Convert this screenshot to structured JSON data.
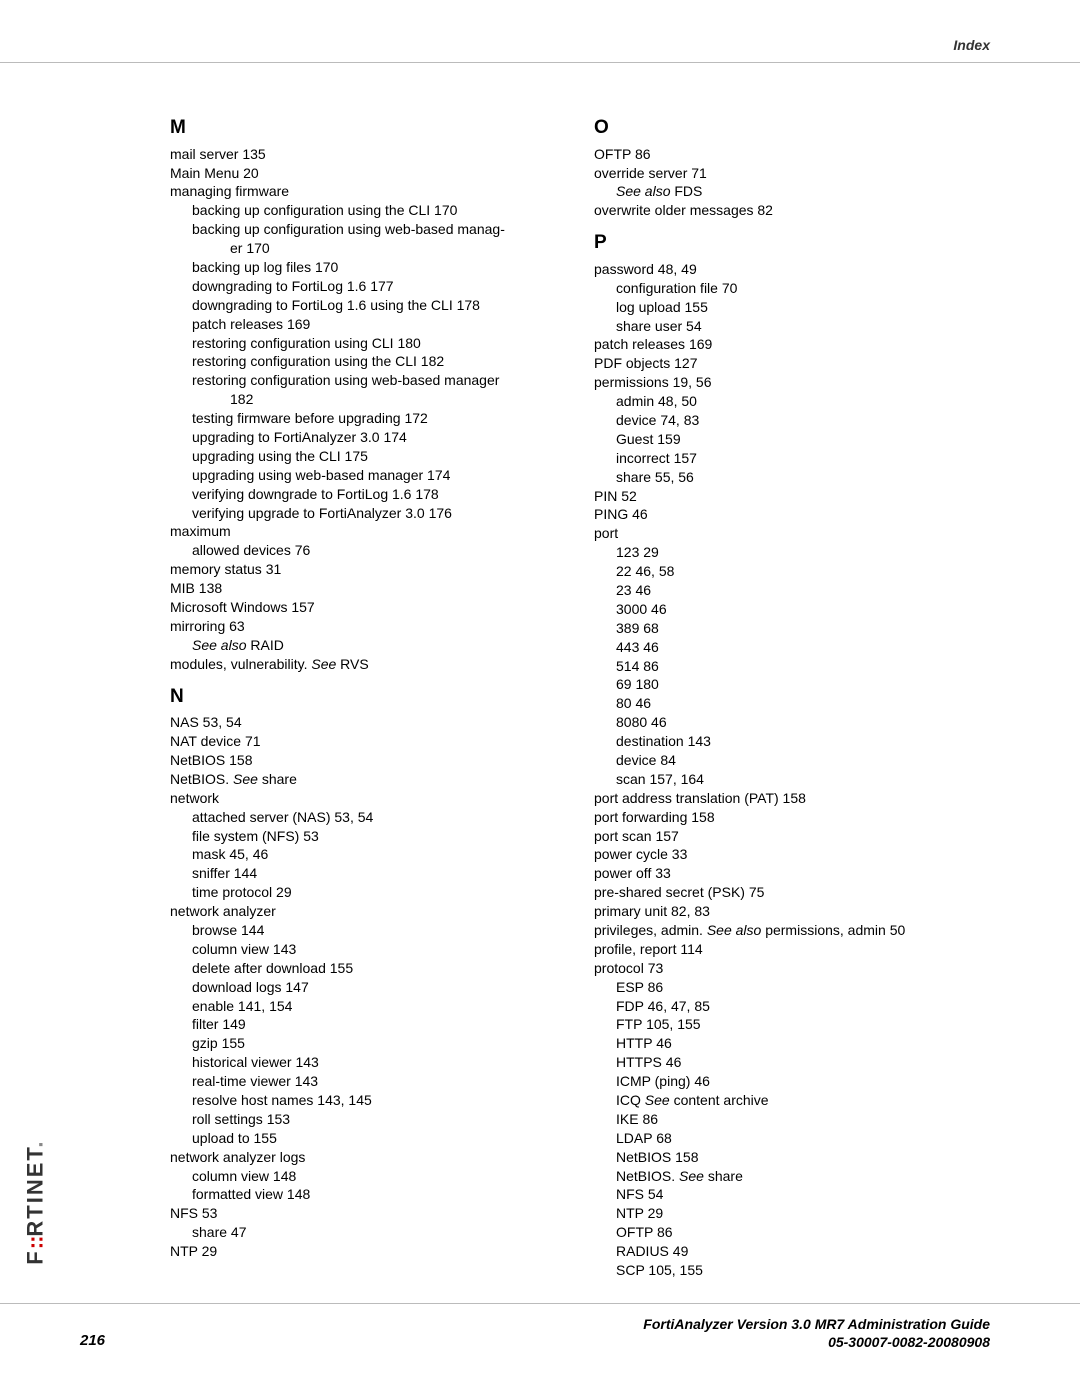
{
  "header": {
    "label": "Index"
  },
  "brand": "F   RTINET",
  "footer": {
    "page": "216",
    "title": "FortiAnalyzer Version 3.0 MR7 Administration Guide",
    "docnum": "05-30007-0082-20080908"
  },
  "left": {
    "M": {
      "letter": "M",
      "items": [
        {
          "t": "mail server 135"
        },
        {
          "t": "Main Menu 20"
        },
        {
          "t": "managing firmware"
        },
        {
          "t": "backing up configuration using the CLI 170",
          "lvl": 1
        },
        {
          "t": "backing up configuration using web-based manag-",
          "lvl": 1
        },
        {
          "t": "er 170",
          "lvl": 2
        },
        {
          "t": "backing up log files 170",
          "lvl": 1
        },
        {
          "t": "downgrading to FortiLog 1.6 177",
          "lvl": 1
        },
        {
          "t": "downgrading to FortiLog 1.6 using the CLI 178",
          "lvl": 1
        },
        {
          "t": "patch releases 169",
          "lvl": 1
        },
        {
          "t": "restoring configuration using CLI 180",
          "lvl": 1
        },
        {
          "t": "restoring configuration using the CLI 182",
          "lvl": 1
        },
        {
          "t": "restoring configuration using web-based manager",
          "lvl": 1
        },
        {
          "t": "182",
          "lvl": 2
        },
        {
          "t": "testing firmware before upgrading 172",
          "lvl": 1
        },
        {
          "t": "upgrading to FortiAnalyzer 3.0 174",
          "lvl": 1
        },
        {
          "t": "upgrading using the CLI 175",
          "lvl": 1
        },
        {
          "t": "upgrading using web-based manager 174",
          "lvl": 1
        },
        {
          "t": "verifying downgrade to FortiLog 1.6 178",
          "lvl": 1
        },
        {
          "t": "verifying upgrade to FortiAnalyzer 3.0 176",
          "lvl": 1
        },
        {
          "t": "maximum"
        },
        {
          "t": "allowed devices 76",
          "lvl": 1
        },
        {
          "t": "memory status 31"
        },
        {
          "t": "MIB 138"
        },
        {
          "t": "Microsoft Windows 157"
        },
        {
          "t": "mirroring 63"
        },
        {
          "html": "<span class='italic'>See also</span> RAID",
          "lvl": 1
        },
        {
          "html": "modules, vulnerability. <span class='italic'>See</span>  RVS"
        }
      ]
    },
    "N": {
      "letter": "N",
      "items": [
        {
          "t": "NAS 53, 54"
        },
        {
          "t": "NAT device 71"
        },
        {
          "t": "NetBIOS 158"
        },
        {
          "html": "NetBIOS. <span class='italic'>See</span>  share"
        },
        {
          "t": "network"
        },
        {
          "t": "attached server (NAS) 53, 54",
          "lvl": 1
        },
        {
          "t": "file system (NFS) 53",
          "lvl": 1
        },
        {
          "t": "mask 45, 46",
          "lvl": 1
        },
        {
          "t": "sniffer 144",
          "lvl": 1
        },
        {
          "t": "time protocol 29",
          "lvl": 1
        },
        {
          "t": "network analyzer"
        },
        {
          "t": "browse 144",
          "lvl": 1
        },
        {
          "t": "column view 143",
          "lvl": 1
        },
        {
          "t": "delete after download 155",
          "lvl": 1
        },
        {
          "t": "download logs 147",
          "lvl": 1
        },
        {
          "t": "enable 141, 154",
          "lvl": 1
        },
        {
          "t": "filter 149",
          "lvl": 1
        },
        {
          "t": "gzip 155",
          "lvl": 1
        },
        {
          "t": "historical viewer 143",
          "lvl": 1
        },
        {
          "t": "real-time viewer 143",
          "lvl": 1
        },
        {
          "t": "resolve host names 143, 145",
          "lvl": 1
        },
        {
          "t": "roll settings 153",
          "lvl": 1
        },
        {
          "t": "upload to 155",
          "lvl": 1
        },
        {
          "t": "network analyzer logs"
        },
        {
          "t": "column view 148",
          "lvl": 1
        },
        {
          "t": "formatted view 148",
          "lvl": 1
        },
        {
          "t": "NFS 53"
        },
        {
          "t": "share 47",
          "lvl": 1
        },
        {
          "t": "NTP 29"
        }
      ]
    }
  },
  "right": {
    "O": {
      "letter": "O",
      "items": [
        {
          "t": "OFTP 86"
        },
        {
          "t": "override server 71"
        },
        {
          "html": "<span class='italic'>See also</span> FDS",
          "lvl": 1
        },
        {
          "t": "overwrite older messages 82"
        }
      ]
    },
    "P": {
      "letter": "P",
      "items": [
        {
          "t": "password 48, 49"
        },
        {
          "t": "configuration file 70",
          "lvl": 1
        },
        {
          "t": "log upload 155",
          "lvl": 1
        },
        {
          "t": "share user 54",
          "lvl": 1
        },
        {
          "t": "patch releases 169"
        },
        {
          "t": "PDF objects 127"
        },
        {
          "t": "permissions 19, 56"
        },
        {
          "t": "admin 48, 50",
          "lvl": 1
        },
        {
          "t": "device 74, 83",
          "lvl": 1
        },
        {
          "t": "Guest 159",
          "lvl": 1
        },
        {
          "t": "incorrect 157",
          "lvl": 1
        },
        {
          "t": "share 55, 56",
          "lvl": 1
        },
        {
          "t": "PIN 52"
        },
        {
          "t": "PING 46"
        },
        {
          "t": "port"
        },
        {
          "t": "123 29",
          "lvl": 1
        },
        {
          "t": "22 46, 58",
          "lvl": 1
        },
        {
          "t": "23 46",
          "lvl": 1
        },
        {
          "t": "3000 46",
          "lvl": 1
        },
        {
          "t": "389 68",
          "lvl": 1
        },
        {
          "t": "443 46",
          "lvl": 1
        },
        {
          "t": "514 86",
          "lvl": 1
        },
        {
          "t": "69 180",
          "lvl": 1
        },
        {
          "t": "80 46",
          "lvl": 1
        },
        {
          "t": "8080 46",
          "lvl": 1
        },
        {
          "t": "destination 143",
          "lvl": 1
        },
        {
          "t": "device 84",
          "lvl": 1
        },
        {
          "t": "scan 157, 164",
          "lvl": 1
        },
        {
          "t": "port address translation (PAT) 158"
        },
        {
          "t": "port forwarding 158"
        },
        {
          "t": "port scan 157"
        },
        {
          "t": "power cycle 33"
        },
        {
          "t": "power off 33"
        },
        {
          "t": "pre-shared secret (PSK) 75"
        },
        {
          "t": "primary unit 82, 83"
        },
        {
          "html": "privileges, admin. <span class='italic'>See also</span>  permissions, admin 50"
        },
        {
          "t": "profile, report 114"
        },
        {
          "t": "protocol 73"
        },
        {
          "t": "ESP 86",
          "lvl": 1
        },
        {
          "t": "FDP 46, 47, 85",
          "lvl": 1
        },
        {
          "t": "FTP 105, 155",
          "lvl": 1
        },
        {
          "t": "HTTP 46",
          "lvl": 1
        },
        {
          "t": "HTTPS 46",
          "lvl": 1
        },
        {
          "t": "ICMP (ping) 46",
          "lvl": 1
        },
        {
          "html": "ICQ <span class='italic'>See</span>  content archive",
          "lvl": 1
        },
        {
          "t": "IKE 86",
          "lvl": 1
        },
        {
          "t": "LDAP 68",
          "lvl": 1
        },
        {
          "t": "NetBIOS 158",
          "lvl": 1
        },
        {
          "html": "NetBIOS. <span class='italic'>See</span>  share",
          "lvl": 1
        },
        {
          "t": "NFS 54",
          "lvl": 1
        },
        {
          "t": "NTP 29",
          "lvl": 1
        },
        {
          "t": "OFTP 86",
          "lvl": 1
        },
        {
          "t": "RADIUS 49",
          "lvl": 1
        },
        {
          "t": "SCP 105, 155",
          "lvl": 1
        }
      ]
    }
  }
}
